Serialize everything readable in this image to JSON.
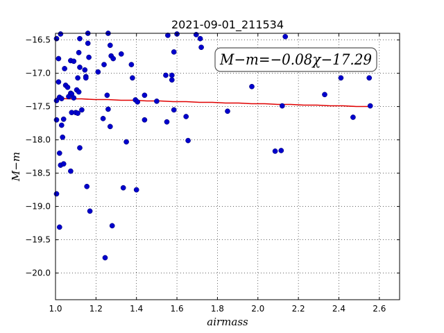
{
  "chart_data": {
    "type": "scatter",
    "title": "2021-09-01_211534",
    "xlabel": "airmass",
    "ylabel": "M−m",
    "xlim": [
      1.0,
      2.7
    ],
    "ylim": [
      -20.4,
      -16.4
    ],
    "y_inverted": true,
    "grid": true,
    "xticks": [
      1.0,
      1.2,
      1.4,
      1.6,
      1.8,
      2.0,
      2.2,
      2.4,
      2.6
    ],
    "xtick_labels": [
      "1.0",
      "1.2",
      "1.4",
      "1.6",
      "1.8",
      "2.0",
      "2.2",
      "2.4",
      "2.6"
    ],
    "yticks": [
      -16.5,
      -17.0,
      -17.5,
      -18.0,
      -18.5,
      -19.0,
      -19.5,
      -20.0
    ],
    "ytick_labels": [
      "−16.5",
      "−17.0",
      "−17.5",
      "−18.0",
      "−18.5",
      "−19.0",
      "−19.5",
      "−20.0"
    ],
    "annotation": "M−m=−0.08χ−17.29",
    "annotation_position": "top-right",
    "point_color": "#0000cc",
    "fit_color": "#e00000",
    "points": [
      [
        1.005,
        -16.48
      ],
      [
        1.015,
        -16.78
      ],
      [
        1.025,
        -16.41
      ],
      [
        1.045,
        -16.93
      ],
      [
        1.075,
        -16.81
      ],
      [
        1.09,
        -16.82
      ],
      [
        1.115,
        -16.69
      ],
      [
        1.12,
        -16.48
      ],
      [
        1.16,
        -16.55
      ],
      [
        1.16,
        -16.4
      ],
      [
        1.165,
        -16.76
      ],
      [
        1.21,
        -16.98
      ],
      [
        1.24,
        -16.87
      ],
      [
        1.26,
        -16.4
      ],
      [
        1.27,
        -16.58
      ],
      [
        1.275,
        -16.74
      ],
      [
        1.285,
        -16.78
      ],
      [
        1.325,
        -16.71
      ],
      [
        1.375,
        -16.87
      ],
      [
        1.015,
        -17.13
      ],
      [
        1.05,
        -17.18
      ],
      [
        1.06,
        -17.21
      ],
      [
        1.075,
        -17.3
      ],
      [
        1.08,
        -17.31
      ],
      [
        1.09,
        -17.37
      ],
      [
        1.105,
        -17.25
      ],
      [
        1.11,
        -17.07
      ],
      [
        1.12,
        -16.91
      ],
      [
        1.115,
        -17.28
      ],
      [
        1.145,
        -16.95
      ],
      [
        1.15,
        -17.05
      ],
      [
        1.15,
        -17.07
      ],
      [
        1.005,
        -17.41
      ],
      [
        1.02,
        -17.36
      ],
      [
        1.03,
        -17.38
      ],
      [
        1.065,
        -17.35
      ],
      [
        1.08,
        -17.59
      ],
      [
        1.1,
        -17.59
      ],
      [
        1.11,
        -17.6
      ],
      [
        1.13,
        -17.55
      ],
      [
        1.005,
        -17.7
      ],
      [
        1.04,
        -17.69
      ],
      [
        1.03,
        -17.78
      ],
      [
        1.035,
        -17.96
      ],
      [
        1.235,
        -17.68
      ],
      [
        1.255,
        -17.33
      ],
      [
        1.26,
        -17.54
      ],
      [
        1.27,
        -17.8
      ],
      [
        1.35,
        -18.03
      ],
      [
        1.38,
        -17.07
      ],
      [
        1.395,
        -17.4
      ],
      [
        1.405,
        -17.43
      ],
      [
        1.44,
        -17.33
      ],
      [
        1.44,
        -17.7
      ],
      [
        1.5,
        -17.42
      ],
      [
        1.545,
        -17.03
      ],
      [
        1.55,
        -17.73
      ],
      [
        1.555,
        -16.43
      ],
      [
        1.575,
        -17.03
      ],
      [
        1.575,
        -17.1
      ],
      [
        1.585,
        -16.68
      ],
      [
        1.585,
        -17.55
      ],
      [
        1.6,
        -16.41
      ],
      [
        1.645,
        -17.65
      ],
      [
        1.655,
        -18.01
      ],
      [
        1.695,
        -16.42
      ],
      [
        1.715,
        -16.48
      ],
      [
        1.72,
        -16.61
      ],
      [
        1.85,
        -17.57
      ],
      [
        1.97,
        -17.2
      ],
      [
        2.085,
        -18.17
      ],
      [
        2.115,
        -18.16
      ],
      [
        2.12,
        -17.49
      ],
      [
        2.135,
        -16.45
      ],
      [
        2.33,
        -17.32
      ],
      [
        2.41,
        -17.07
      ],
      [
        2.47,
        -17.66
      ],
      [
        2.55,
        -17.07
      ],
      [
        2.555,
        -17.49
      ],
      [
        1.02,
        -18.2
      ],
      [
        1.025,
        -18.38
      ],
      [
        1.04,
        -18.36
      ],
      [
        1.075,
        -18.47
      ],
      [
        1.12,
        -18.12
      ],
      [
        1.155,
        -18.7
      ],
      [
        1.17,
        -19.07
      ],
      [
        1.005,
        -18.81
      ],
      [
        1.02,
        -19.31
      ],
      [
        1.28,
        -19.29
      ],
      [
        1.335,
        -18.72
      ],
      [
        1.4,
        -18.75
      ],
      [
        1.245,
        -19.77
      ]
    ],
    "fit_line": {
      "slope": -0.08,
      "intercept": -17.29,
      "x_range": [
        1.0,
        2.55
      ]
    }
  }
}
